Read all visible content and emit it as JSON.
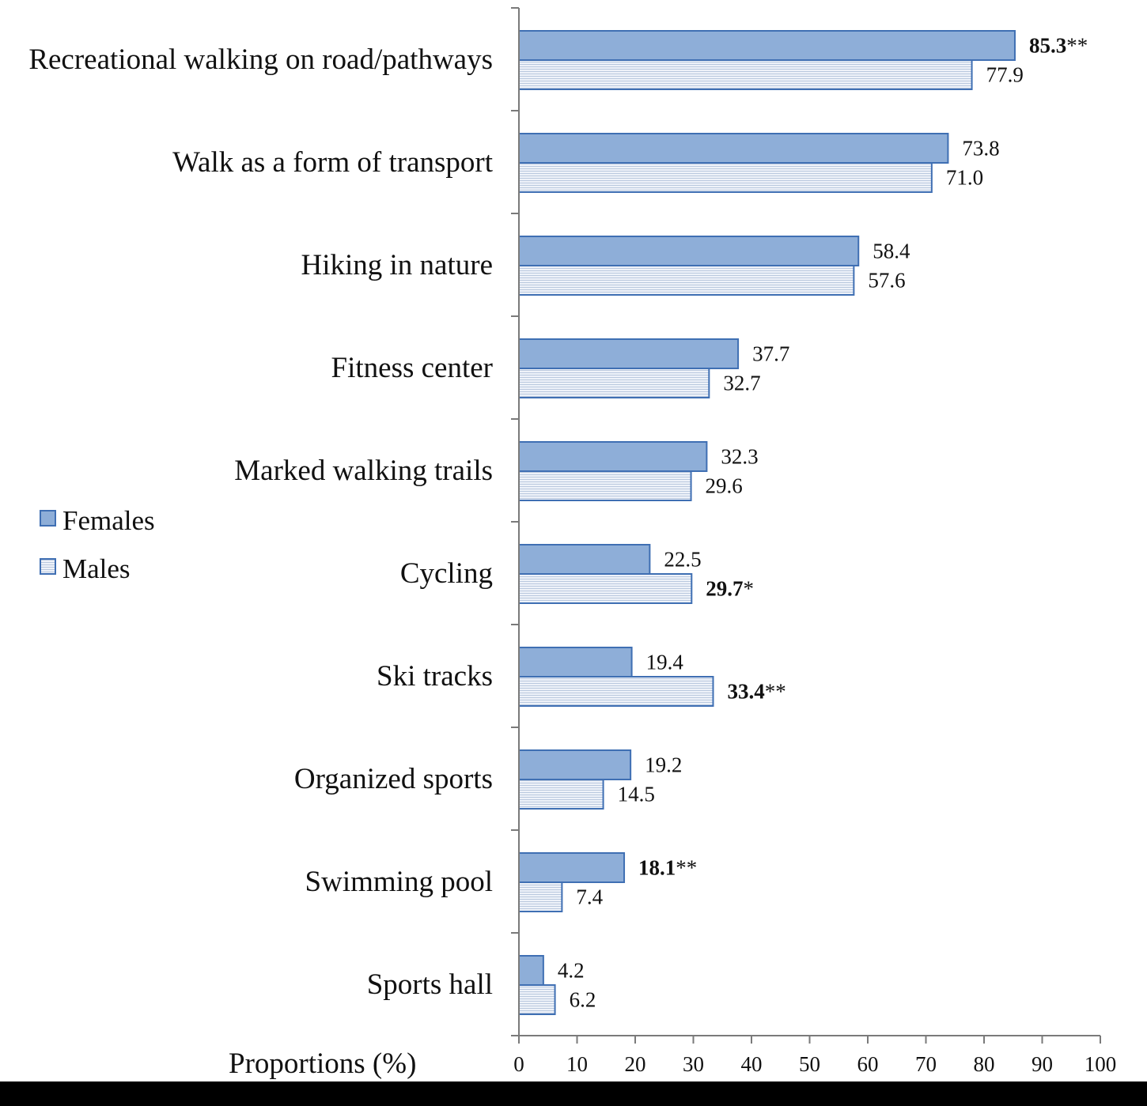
{
  "chart_data": {
    "type": "bar",
    "orientation": "horizontal",
    "categories": [
      "Recreational walking on road/pathways",
      "Walk as a form of transport",
      "Hiking in nature",
      "Fitness center",
      "Marked walking trails",
      "Cycling",
      "Ski tracks",
      "Organized sports",
      "Swimming pool",
      "Sports hall"
    ],
    "series": [
      {
        "name": "Females",
        "values": [
          85.3,
          73.8,
          58.4,
          37.7,
          32.3,
          22.5,
          19.4,
          19.2,
          18.1,
          4.2
        ],
        "labels": [
          "85.3",
          "73.8",
          "58.4",
          "37.7",
          "32.3",
          "22.5",
          "19.4",
          "19.2",
          "18.1",
          "4.2"
        ],
        "significance": [
          "**",
          "",
          "",
          "",
          "",
          "",
          "",
          "",
          "**",
          ""
        ],
        "color": "#8eaed8",
        "border": "#3f6fb3",
        "pattern": "solid"
      },
      {
        "name": "Males",
        "values": [
          77.9,
          71.0,
          57.6,
          32.7,
          29.6,
          29.7,
          33.4,
          14.5,
          7.4,
          6.2
        ],
        "labels": [
          "77.9",
          "71.0",
          "57.6",
          "32.7",
          "29.6",
          "29.7",
          "33.4",
          "14.5",
          "7.4",
          "6.2"
        ],
        "significance": [
          "",
          "",
          "",
          "",
          "",
          "*",
          "**",
          "",
          "",
          ""
        ],
        "color": "#dde6f3",
        "border": "#3f6fb3",
        "pattern": "horizontal-lines"
      }
    ],
    "xlabel": "Proportions (%)",
    "xlim": [
      0,
      100
    ],
    "xticks": [
      0,
      10,
      20,
      30,
      40,
      50,
      60,
      70,
      80,
      90,
      100
    ],
    "grid": false,
    "legend": {
      "position": "left",
      "entries": [
        "Females",
        "Males"
      ]
    }
  }
}
